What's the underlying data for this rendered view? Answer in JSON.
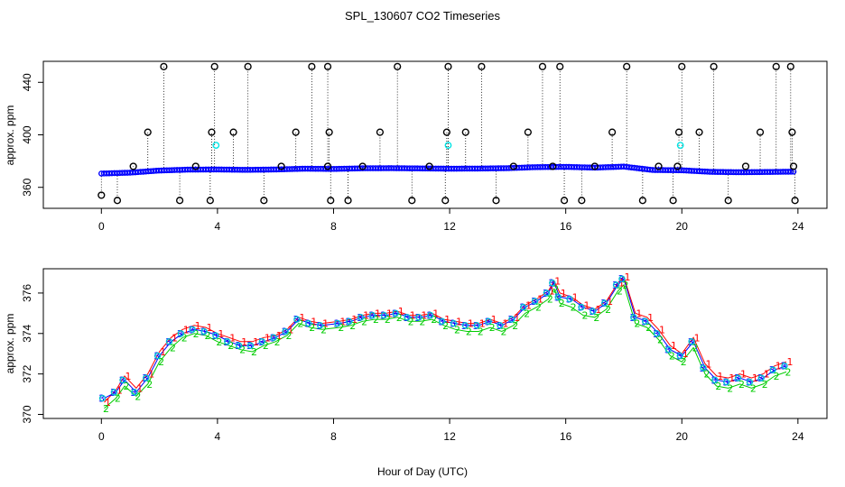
{
  "figure": {
    "title": "SPL_130607  CO2 Timeseries",
    "xlabel": "Hour of Day (UTC)"
  },
  "colors": {
    "raw_series": "#0000ff",
    "raw_outlier": "#000000",
    "raw_flag": "#00e5e5",
    "series_1": "#ff0000",
    "series_2": "#00cc00",
    "series_3": "#0000ff",
    "circle": "#00bcd4"
  },
  "chart_data": [
    {
      "type": "scatter",
      "title": "",
      "ylabel": "approx. ppm",
      "xlim": [
        -2,
        25
      ],
      "ylim": [
        344,
        456
      ],
      "xticks": [
        0,
        4,
        8,
        12,
        16,
        20,
        24
      ],
      "yticks": [
        360,
        400,
        440
      ],
      "main_series": {
        "hours": [
          0,
          1,
          2,
          3,
          4,
          5,
          6,
          7,
          8,
          9,
          10,
          11,
          12,
          13,
          14,
          15,
          16,
          17,
          18,
          19,
          20,
          21,
          22,
          23,
          24
        ],
        "values": [
          370.5,
          371.2,
          372.8,
          373.5,
          373.6,
          373.3,
          373.6,
          374.2,
          374.0,
          374.5,
          374.6,
          374.4,
          374.2,
          374.3,
          374.6,
          375.4,
          375.6,
          375.0,
          375.8,
          373.2,
          373.0,
          371.8,
          371.5,
          371.7,
          372.0
        ]
      },
      "spikes": [
        {
          "x": 0.0,
          "y": 354
        },
        {
          "x": 0.55,
          "y": 350
        },
        {
          "x": 1.1,
          "y": 376
        },
        {
          "x": 1.6,
          "y": 402
        },
        {
          "x": 2.15,
          "y": 452
        },
        {
          "x": 2.7,
          "y": 350
        },
        {
          "x": 3.25,
          "y": 376
        },
        {
          "x": 3.75,
          "y": 350
        },
        {
          "x": 3.8,
          "y": 402
        },
        {
          "x": 3.9,
          "y": 452
        },
        {
          "x": 4.55,
          "y": 402
        },
        {
          "x": 5.05,
          "y": 452
        },
        {
          "x": 5.6,
          "y": 350
        },
        {
          "x": 6.2,
          "y": 376
        },
        {
          "x": 6.7,
          "y": 402
        },
        {
          "x": 7.25,
          "y": 452
        },
        {
          "x": 7.8,
          "y": 376
        },
        {
          "x": 7.85,
          "y": 402
        },
        {
          "x": 7.9,
          "y": 350
        },
        {
          "x": 7.8,
          "y": 452
        },
        {
          "x": 8.5,
          "y": 350
        },
        {
          "x": 9.0,
          "y": 376
        },
        {
          "x": 9.6,
          "y": 402
        },
        {
          "x": 10.2,
          "y": 452
        },
        {
          "x": 10.7,
          "y": 350
        },
        {
          "x": 11.3,
          "y": 376
        },
        {
          "x": 11.85,
          "y": 350
        },
        {
          "x": 11.9,
          "y": 402
        },
        {
          "x": 11.95,
          "y": 452
        },
        {
          "x": 12.55,
          "y": 402
        },
        {
          "x": 13.1,
          "y": 452
        },
        {
          "x": 13.6,
          "y": 350
        },
        {
          "x": 14.2,
          "y": 376
        },
        {
          "x": 14.7,
          "y": 402
        },
        {
          "x": 15.2,
          "y": 452
        },
        {
          "x": 15.55,
          "y": 376
        },
        {
          "x": 15.8,
          "y": 452
        },
        {
          "x": 15.95,
          "y": 350
        },
        {
          "x": 16.55,
          "y": 350
        },
        {
          "x": 17.0,
          "y": 376
        },
        {
          "x": 17.6,
          "y": 402
        },
        {
          "x": 18.1,
          "y": 452
        },
        {
          "x": 18.65,
          "y": 350
        },
        {
          "x": 19.2,
          "y": 376
        },
        {
          "x": 19.7,
          "y": 350
        },
        {
          "x": 19.85,
          "y": 376
        },
        {
          "x": 19.9,
          "y": 402
        },
        {
          "x": 20.0,
          "y": 452
        },
        {
          "x": 20.6,
          "y": 402
        },
        {
          "x": 21.1,
          "y": 452
        },
        {
          "x": 21.6,
          "y": 350
        },
        {
          "x": 22.2,
          "y": 376
        },
        {
          "x": 22.7,
          "y": 402
        },
        {
          "x": 23.25,
          "y": 452
        },
        {
          "x": 23.75,
          "y": 452
        },
        {
          "x": 23.8,
          "y": 402
        },
        {
          "x": 23.85,
          "y": 376
        },
        {
          "x": 23.9,
          "y": 350
        }
      ],
      "flagged": [
        {
          "x": 3.95,
          "y": 392
        },
        {
          "x": 11.95,
          "y": 392
        },
        {
          "x": 19.95,
          "y": 392
        }
      ]
    },
    {
      "type": "line",
      "title": "",
      "ylabel": "approx. ppm",
      "xlim": [
        -2,
        25
      ],
      "ylim": [
        369.8,
        377.2
      ],
      "xticks": [
        0,
        4,
        8,
        12,
        16,
        20,
        24
      ],
      "yticks": [
        370,
        372,
        374,
        376
      ],
      "glyphs": [
        "1",
        "2",
        "3"
      ],
      "series": [
        {
          "name": "1",
          "x": [
            0.1,
            0.5,
            0.8,
            1.2,
            1.6,
            2.0,
            2.4,
            2.8,
            3.2,
            3.6,
            4.0,
            4.4,
            4.8,
            5.2,
            5.6,
            6.0,
            6.4,
            6.8,
            7.2,
            7.6,
            8.2,
            8.6,
            9.0,
            9.4,
            9.8,
            10.2,
            10.6,
            11.0,
            11.4,
            11.8,
            12.2,
            12.6,
            13.0,
            13.4,
            13.8,
            14.2,
            14.6,
            15.0,
            15.4,
            15.6,
            15.8,
            16.2,
            16.6,
            17.0,
            17.4,
            17.8,
            18.0,
            18.4,
            18.8,
            19.2,
            19.6,
            20.0,
            20.4,
            20.8,
            21.2,
            21.6,
            22.0,
            22.4,
            22.8,
            23.2,
            23.6
          ],
          "y": [
            370.6,
            371.2,
            371.9,
            371.3,
            372.0,
            373.1,
            373.8,
            374.2,
            374.4,
            374.3,
            374.0,
            373.8,
            373.6,
            373.6,
            373.8,
            373.9,
            374.2,
            374.8,
            374.6,
            374.5,
            374.6,
            374.7,
            374.9,
            375.0,
            375.0,
            375.1,
            374.9,
            374.9,
            375.0,
            374.7,
            374.6,
            374.5,
            374.5,
            374.7,
            374.5,
            374.8,
            375.4,
            375.7,
            376.1,
            376.6,
            376.0,
            375.8,
            375.4,
            375.2,
            375.6,
            376.5,
            376.8,
            375.0,
            374.8,
            374.2,
            373.4,
            373.0,
            373.8,
            372.5,
            371.9,
            371.8,
            372.0,
            371.8,
            372.0,
            372.4,
            372.6
          ]
        },
        {
          "name": "2",
          "x": [
            0.1,
            0.5,
            0.8,
            1.2,
            1.6,
            2.0,
            2.4,
            2.8,
            3.2,
            3.6,
            4.0,
            4.4,
            4.8,
            5.2,
            5.6,
            6.0,
            6.4,
            6.8,
            7.2,
            7.6,
            8.2,
            8.6,
            9.0,
            9.4,
            9.8,
            10.2,
            10.6,
            11.0,
            11.4,
            11.8,
            12.2,
            12.6,
            13.0,
            13.4,
            13.8,
            14.2,
            14.6,
            15.0,
            15.4,
            15.6,
            15.8,
            16.2,
            16.6,
            17.0,
            17.4,
            17.8,
            18.0,
            18.4,
            18.8,
            19.2,
            19.6,
            20.0,
            20.4,
            20.8,
            21.2,
            21.6,
            22.0,
            22.4,
            22.8,
            23.2,
            23.6
          ],
          "y": [
            370.3,
            370.8,
            371.4,
            370.9,
            371.5,
            372.6,
            373.3,
            373.8,
            374.0,
            373.9,
            373.6,
            373.4,
            373.2,
            373.1,
            373.4,
            373.6,
            373.9,
            374.5,
            374.3,
            374.2,
            374.3,
            374.4,
            374.6,
            374.7,
            374.7,
            374.8,
            374.6,
            374.6,
            374.7,
            374.4,
            374.2,
            374.1,
            374.1,
            374.3,
            374.1,
            374.4,
            375.0,
            375.3,
            375.7,
            376.2,
            375.5,
            375.3,
            374.9,
            374.8,
            375.2,
            376.1,
            376.4,
            374.5,
            374.3,
            373.7,
            372.9,
            372.6,
            373.3,
            372.0,
            371.4,
            371.3,
            371.5,
            371.3,
            371.5,
            371.9,
            372.1
          ]
        },
        {
          "name": "3",
          "x": [
            0.1,
            0.5,
            0.8,
            1.2,
            1.6,
            2.0,
            2.4,
            2.8,
            3.2,
            3.6,
            4.0,
            4.4,
            4.8,
            5.2,
            5.6,
            6.0,
            6.4,
            6.8,
            7.2,
            7.6,
            8.2,
            8.6,
            9.0,
            9.4,
            9.8,
            10.2,
            10.6,
            11.0,
            11.4,
            11.8,
            12.2,
            12.6,
            13.0,
            13.4,
            13.8,
            14.2,
            14.6,
            15.0,
            15.4,
            15.6,
            15.8,
            16.2,
            16.6,
            17.0,
            17.4,
            17.8,
            18.0,
            18.4,
            18.8,
            19.2,
            19.6,
            20.0,
            20.4,
            20.8,
            21.2,
            21.6,
            22.0,
            22.4,
            22.8,
            23.2,
            23.6
          ],
          "y": [
            370.8,
            371.1,
            371.7,
            371.1,
            371.8,
            372.9,
            373.6,
            374.0,
            374.2,
            374.1,
            373.9,
            373.6,
            373.4,
            373.4,
            373.6,
            373.8,
            374.1,
            374.7,
            374.5,
            374.4,
            374.5,
            374.6,
            374.8,
            374.9,
            374.9,
            375.0,
            374.8,
            374.8,
            374.9,
            374.6,
            374.5,
            374.4,
            374.4,
            374.6,
            374.4,
            374.7,
            375.3,
            375.6,
            376.0,
            376.5,
            375.8,
            375.7,
            375.3,
            375.1,
            375.5,
            376.4,
            376.7,
            374.8,
            374.6,
            374.0,
            373.2,
            372.9,
            373.6,
            372.3,
            371.7,
            371.6,
            371.8,
            371.6,
            371.8,
            372.2,
            372.4
          ]
        }
      ]
    }
  ]
}
